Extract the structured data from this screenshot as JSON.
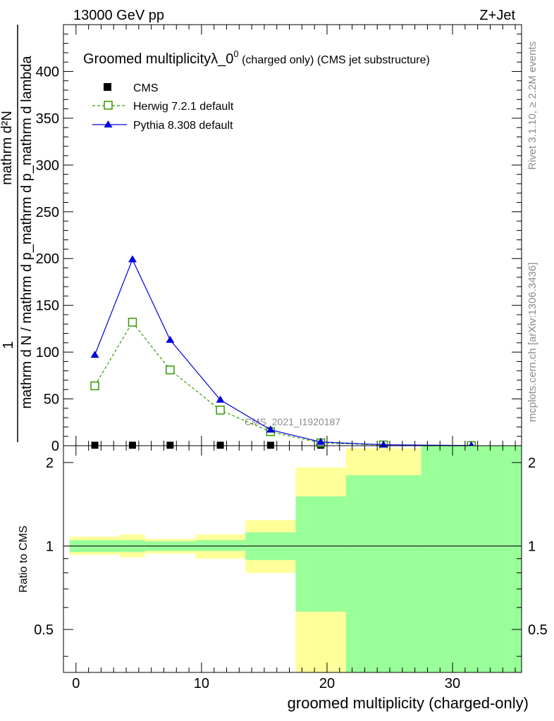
{
  "header": {
    "energy": "13000 GeV pp",
    "process": "Z+Jet",
    "title": "Groomed multiplicityλ_0",
    "title_sup": "0",
    "title_suffix": " (charged only) (CMS jet substructure)",
    "watermark": "CMS_2021_I1920187",
    "side_rivet": "Rivet 3.1.10, ≥ 2.2M events",
    "side_mcplots": "mcplots.cern.ch [arXiv:1306.3436]"
  },
  "colors": {
    "herwig": "#339900",
    "pythia": "#0000dd",
    "cms": "#000000",
    "band_yellow": "#ffff99",
    "band_green": "#99ff99"
  },
  "chart_data": [
    {
      "type": "line",
      "ylabel_top": "1",
      "ylabel_numerator": "mathrm d²N",
      "ylabel_denominator": "mathrm d N / mathrm d p_mathrm d p_mathrm d lambda",
      "xlim": [
        -1,
        35.5
      ],
      "ylim": [
        0,
        450
      ],
      "yticks": [
        0,
        50,
        100,
        150,
        200,
        250,
        300,
        350,
        400
      ],
      "grid": false,
      "legend_position": "top-left",
      "x": [
        1.5,
        4.5,
        7.5,
        11.5,
        15.5,
        19.5,
        24.5,
        31.5
      ],
      "series": [
        {
          "name": "CMS",
          "marker": "filled-square",
          "values": [
            0.5,
            0.5,
            0.5,
            0.5,
            0.5,
            0.5,
            0.5,
            0.5
          ]
        },
        {
          "name": "Herwig 7.2.1 default",
          "marker": "open-square",
          "style": "dashed",
          "values": [
            64,
            132,
            81,
            38,
            15,
            3,
            0.8,
            0.1
          ]
        },
        {
          "name": "Pythia 8.308 default",
          "marker": "filled-triangle",
          "style": "solid",
          "values": [
            97,
            199,
            113,
            49,
            17,
            4,
            1,
            0.2
          ]
        }
      ]
    },
    {
      "type": "area",
      "ylabel": "Ratio to CMS",
      "xlabel": "groomed multiplicity (charged-only)",
      "xlim": [
        -1,
        35.5
      ],
      "ylim": [
        0.35,
        2.3
      ],
      "yticks": [
        0.5,
        1,
        2
      ],
      "xticks": [
        0,
        10,
        20,
        30
      ],
      "reference_line": 1,
      "bins": [
        {
          "x": [
            -0.5,
            3.5
          ],
          "green": [
            0.95,
            1.05
          ],
          "yellow": [
            0.93,
            1.08
          ]
        },
        {
          "x": [
            3.5,
            5.5
          ],
          "green": [
            0.95,
            1.05
          ],
          "yellow": [
            0.91,
            1.1
          ]
        },
        {
          "x": [
            5.5,
            9.5
          ],
          "green": [
            0.96,
            1.04
          ],
          "yellow": [
            0.94,
            1.06
          ]
        },
        {
          "x": [
            9.5,
            13.5
          ],
          "green": [
            0.96,
            1.05
          ],
          "yellow": [
            0.9,
            1.1
          ]
        },
        {
          "x": [
            13.5,
            17.5
          ],
          "green": [
            0.89,
            1.12
          ],
          "yellow": [
            0.8,
            1.24
          ]
        },
        {
          "x": [
            17.5,
            21.5
          ],
          "green": [
            0.58,
            1.51
          ],
          "yellow": [
            0.35,
            1.92
          ]
        },
        {
          "x": [
            21.5,
            27.5
          ],
          "green": [
            0.35,
            1.8
          ],
          "yellow": [
            0.35,
            2.25
          ]
        },
        {
          "x": [
            27.5,
            35.5
          ],
          "green": [
            0.35,
            2.3
          ],
          "yellow": [
            0.35,
            2.3
          ]
        }
      ]
    }
  ]
}
